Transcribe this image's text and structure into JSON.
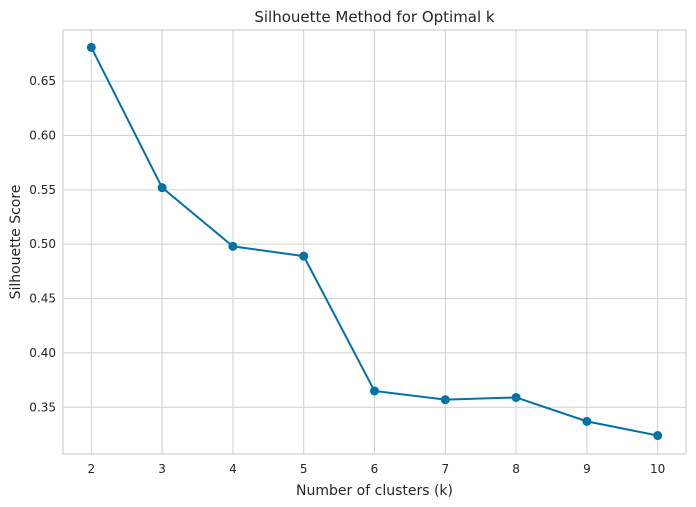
{
  "chart_data": {
    "type": "line",
    "title": "Silhouette Method for Optimal k",
    "xlabel": "Number of clusters (k)",
    "ylabel": "Silhouette Score",
    "x": [
      2,
      3,
      4,
      5,
      6,
      7,
      8,
      9,
      10
    ],
    "series": [
      {
        "values": [
          0.681,
          0.552,
          0.498,
          0.489,
          0.365,
          0.357,
          0.359,
          0.337,
          0.324
        ]
      }
    ],
    "xticks": [
      "2",
      "3",
      "4",
      "5",
      "6",
      "7",
      "8",
      "9",
      "10"
    ],
    "yticks": [
      "0.35",
      "0.40",
      "0.45",
      "0.50",
      "0.55",
      "0.60",
      "0.65"
    ],
    "xlim": [
      1.6,
      10.4
    ],
    "ylim": [
      0.307,
      0.697
    ],
    "grid": true,
    "markers": "circle",
    "colors": {
      "line": "#0072a8",
      "grid": "#d0d0d0",
      "axes_edge": "#c8c8c8",
      "text": "#262626"
    }
  }
}
